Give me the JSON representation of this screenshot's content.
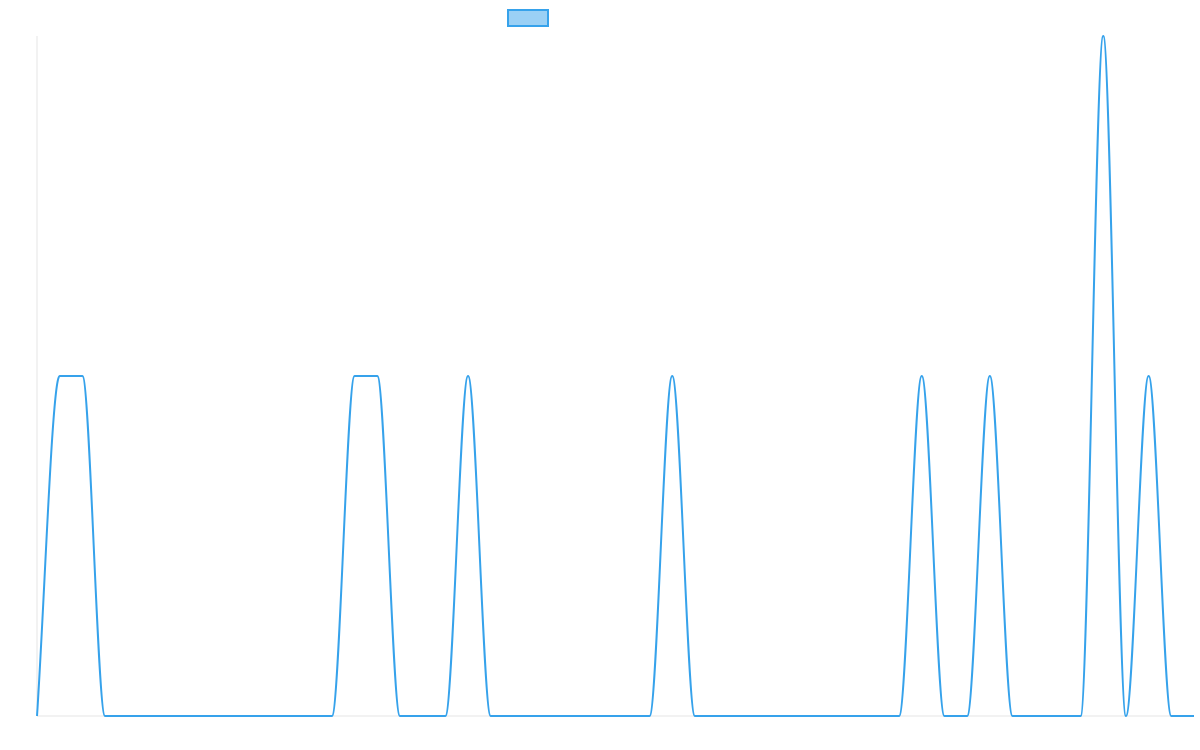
{
  "chart_data": {
    "type": "line",
    "x": [
      0,
      1,
      2,
      3,
      4,
      5,
      6,
      7,
      8,
      9,
      10,
      11,
      12,
      13,
      14,
      15,
      16,
      17,
      18,
      19,
      20,
      21,
      22,
      23,
      24,
      25,
      26,
      27,
      28,
      29,
      30,
      31,
      32,
      33,
      34,
      35,
      36,
      37,
      38,
      39,
      40,
      41,
      42,
      43,
      44,
      45,
      46,
      47,
      48,
      49,
      50,
      51
    ],
    "series": [
      {
        "name": "",
        "values": [
          0,
          1,
          1,
          0,
          0,
          0,
          0,
          0,
          0,
          0,
          0,
          0,
          0,
          0,
          1,
          1,
          0,
          0,
          0,
          1,
          0,
          0,
          0,
          0,
          0,
          0,
          0,
          0,
          1,
          0,
          0,
          0,
          0,
          0,
          0,
          0,
          0,
          0,
          0,
          1,
          0,
          0,
          1,
          0,
          0,
          0,
          0,
          2,
          0,
          1,
          0,
          0
        ],
        "color": "#36A2EB",
        "fill": "#9AD0F5"
      }
    ],
    "xlim": [
      0,
      51
    ],
    "ylim": [
      0,
      2
    ],
    "grid": false,
    "legend": "top-center"
  }
}
